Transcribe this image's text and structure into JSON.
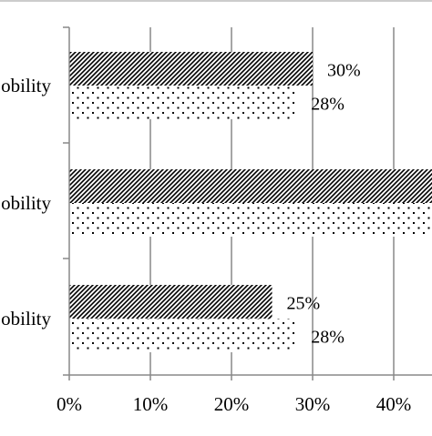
{
  "chart_data": {
    "type": "bar",
    "orientation": "horizontal",
    "categories": [
      "obility",
      "obility",
      "obility"
    ],
    "series": [
      {
        "values": [
          30,
          47,
          25
        ],
        "pattern": "diagonal-hatch"
      },
      {
        "values": [
          28,
          45,
          28
        ],
        "pattern": "dots"
      }
    ],
    "data_labels": [
      [
        "30%",
        "",
        "25%"
      ],
      [
        "28%",
        "",
        "28%"
      ]
    ],
    "x_ticks": [
      "0%",
      "10%",
      "20%",
      "30%",
      "40%"
    ],
    "x_tick_values": [
      0,
      10,
      20,
      30,
      40
    ],
    "xlim": [
      0,
      45
    ],
    "grid": "vertical",
    "title": "",
    "xlabel": "",
    "ylabel": "",
    "colors": {
      "ink": "#000000",
      "grid": "#888888",
      "frame": "#bbbbbb"
    }
  }
}
